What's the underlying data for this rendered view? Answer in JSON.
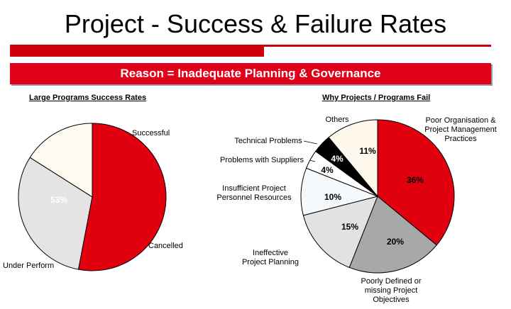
{
  "title": "Project - Success & Failure Rates",
  "banner": "Reason = Inadequate Planning & Governance",
  "colors": {
    "brand_red": "#d0000e",
    "banner_red": "#e0001a"
  },
  "chart_data": [
    {
      "type": "pie",
      "title": "Large Programs Success Rates",
      "slices": [
        {
          "label": "Successful",
          "value": 16,
          "value_label": "16%",
          "color": "#fdfaf0"
        },
        {
          "label": "Cancelled",
          "value": 31,
          "value_label": "31%",
          "color": "#e4e4e4"
        },
        {
          "label": "Under Perform",
          "value": 53,
          "value_label": "53%",
          "color": "#e0000e"
        }
      ]
    },
    {
      "type": "pie",
      "title": "Why Projects / Programs Fail",
      "slices": [
        {
          "label": "Poor Organisation & Project Management Practices",
          "value": 36,
          "value_label": "36%",
          "color": "#e0000e"
        },
        {
          "label": "Poorly Defined or missing Project Objectives",
          "value": 20,
          "value_label": "20%",
          "color": "#a8a8a8"
        },
        {
          "label": "Ineffective Project Planning",
          "value": 15,
          "value_label": "15%",
          "color": "#e2e2e2"
        },
        {
          "label": "Insufficient Project Personnel Resources",
          "value": 10,
          "value_label": "10%",
          "color": "#f5f9fb"
        },
        {
          "label": "Problems with Suppliers",
          "value": 4,
          "value_label": "4%",
          "color": "#ffffff"
        },
        {
          "label": "Technical Problems",
          "value": 4,
          "value_label": "4%",
          "color": "#000000"
        },
        {
          "label": "Others",
          "value": 11,
          "value_label": "11%",
          "color": "#fdf7ec"
        }
      ]
    }
  ]
}
